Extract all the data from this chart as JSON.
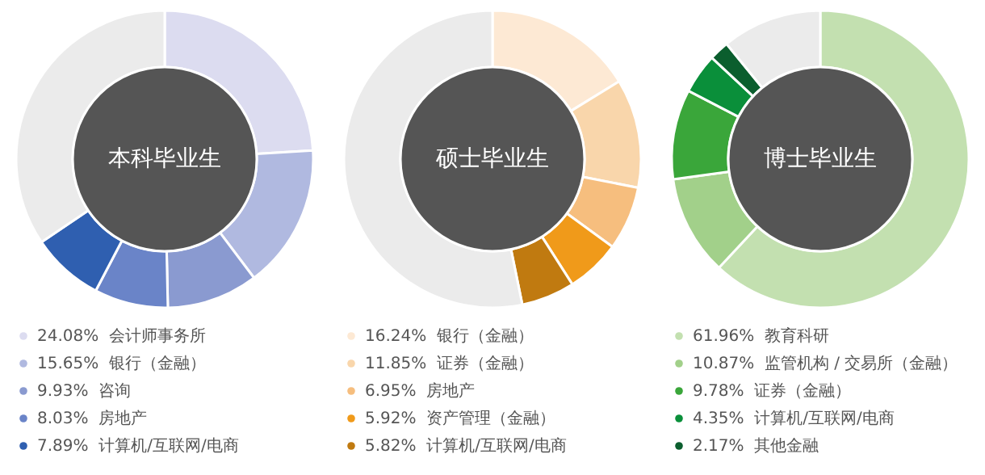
{
  "chart_data": [
    {
      "type": "donut",
      "title": "本科毕业生",
      "legend": "bottom",
      "categories": [
        "会计师事务所",
        "银行（金融）",
        "咨询",
        "房地产",
        "计算机/互联网/电商",
        null
      ],
      "values": [
        24.08,
        15.65,
        9.93,
        8.03,
        7.89,
        34.42
      ],
      "value_labels": [
        "24.08%",
        "15.65%",
        "9.93%",
        "8.03%",
        "7.89%",
        null
      ],
      "colors": [
        "#dcdcf0",
        "#b0b9e0",
        "#8a9ad0",
        "#6a84c8",
        "#2f5fb0",
        "#ebebeb"
      ]
    },
    {
      "type": "donut",
      "title": "硕士毕业生",
      "legend": "bottom",
      "categories": [
        "银行（金融）",
        "证券（金融）",
        "房地产",
        "资产管理（金融）",
        "计算机/互联网/电商",
        null
      ],
      "values": [
        16.24,
        11.85,
        6.95,
        5.92,
        5.82,
        53.22
      ],
      "value_labels": [
        "16.24%",
        "11.85%",
        "6.95%",
        "5.92%",
        "5.82%",
        null
      ],
      "colors": [
        "#fde9d4",
        "#f9d6ab",
        "#f6be7e",
        "#f09a1a",
        "#c07a10",
        "#ebebeb"
      ]
    },
    {
      "type": "donut",
      "title": "博士毕业生",
      "legend": "bottom",
      "categories": [
        "教育科研",
        "监管机构 / 交易所（金融）",
        "证券（金融）",
        "计算机/互联网/电商",
        "其他金融",
        null
      ],
      "values": [
        61.96,
        10.87,
        9.78,
        4.35,
        2.17,
        10.87
      ],
      "value_labels": [
        "61.96%",
        "10.87%",
        "9.78%",
        "4.35%",
        "2.17%",
        null
      ],
      "colors": [
        "#c3e0b0",
        "#a2d08a",
        "#3aa63a",
        "#0a8f3a",
        "#0b5e2e",
        "#ebebeb"
      ]
    }
  ]
}
